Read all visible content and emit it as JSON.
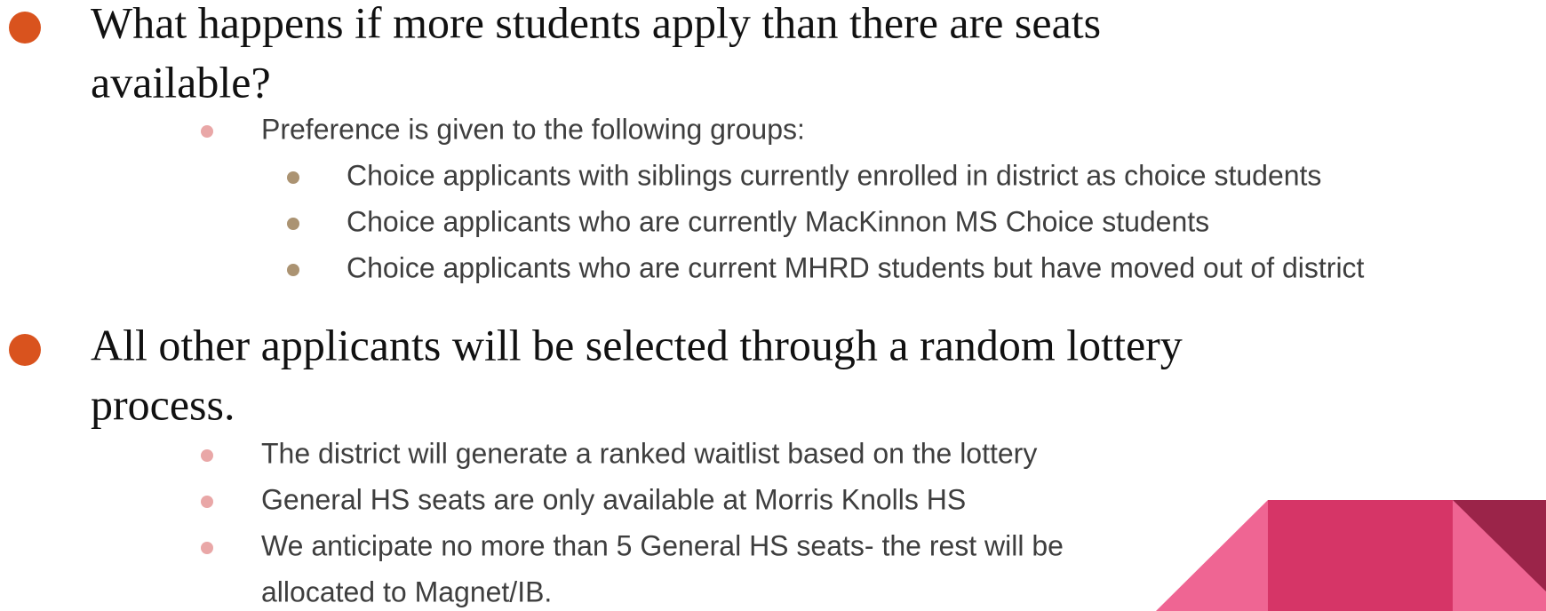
{
  "items": [
    {
      "lines": [
        "What happens if more students apply than there are seats",
        "available?"
      ],
      "subitems": [
        {
          "lines": [
            "Preference is given to the following groups:"
          ],
          "subitems": [
            {
              "lines": [
                "Choice applicants with siblings currently enrolled in district as choice students"
              ]
            },
            {
              "lines": [
                "Choice applicants who are currently MacKinnon MS Choice students"
              ]
            },
            {
              "lines": [
                "Choice applicants who are current MHRD students but have moved out of district"
              ]
            }
          ]
        }
      ]
    },
    {
      "lines": [
        "All other applicants will be selected through a random lottery",
        "process."
      ],
      "subitems": [
        {
          "lines": [
            "The district will generate a ranked waitlist based on the lottery"
          ]
        },
        {
          "lines": [
            "General HS seats are only available at Morris Knolls HS"
          ]
        },
        {
          "lines": [
            "We anticipate no more than 5 General HS seats- the rest will be",
            "allocated to Magnet/IB."
          ]
        }
      ]
    }
  ]
}
